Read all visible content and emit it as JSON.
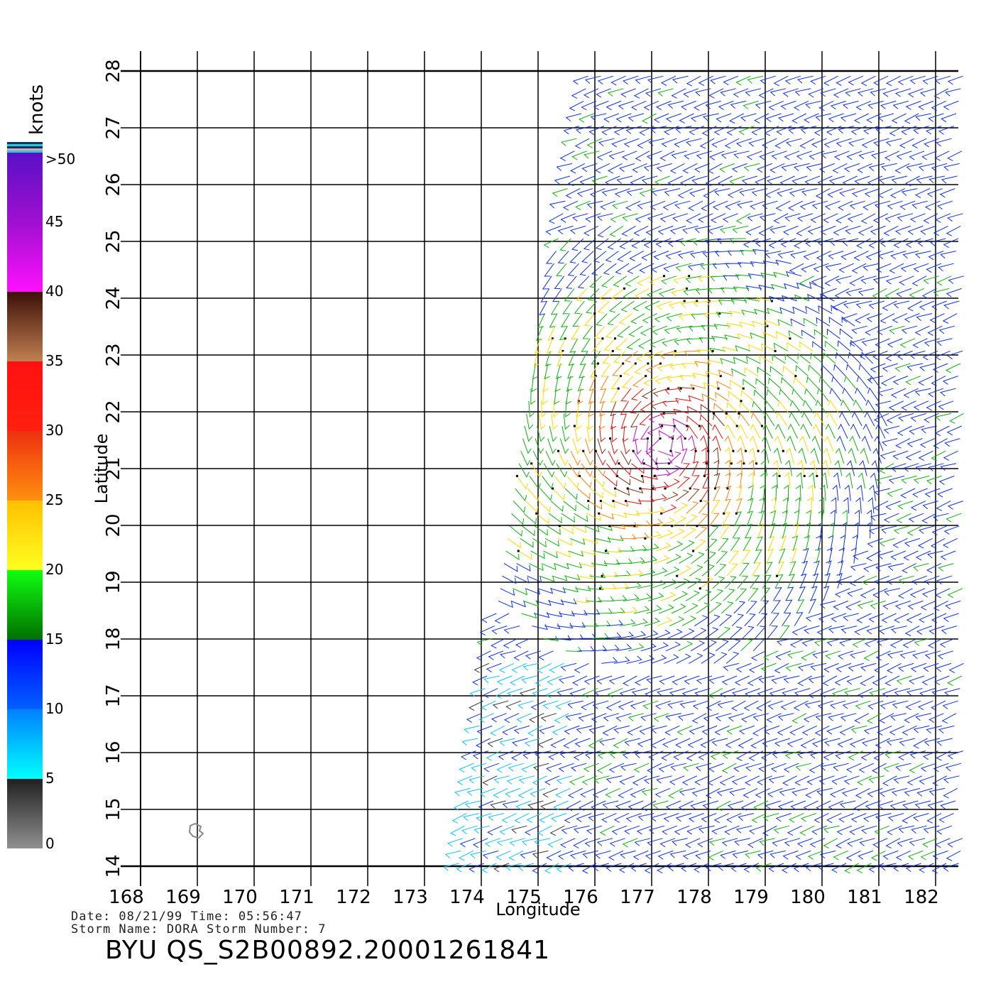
{
  "map": {
    "lon_range": [
      168,
      182
    ],
    "lat_range": [
      14,
      28
    ],
    "lon_ticks": [
      "168",
      "169",
      "170",
      "171",
      "172",
      "173",
      "174",
      "175",
      "176",
      "177",
      "178",
      "179",
      "180",
      "181",
      "182"
    ],
    "lat_ticks": [
      "14",
      "15",
      "16",
      "17",
      "18",
      "19",
      "20",
      "21",
      "22",
      "23",
      "24",
      "25",
      "26",
      "27",
      "28"
    ],
    "xlabel": "Longitude",
    "ylabel": "Latitude",
    "storm_center": {
      "lon": 177.2,
      "lat": 21.4
    },
    "swath_west_edge": [
      [
        175.9,
        28
      ],
      [
        174.8,
        22
      ],
      [
        173.6,
        14
      ]
    ],
    "island": {
      "lon": 169.0,
      "lat": 14.65
    }
  },
  "colorbar": {
    "unit": "knots",
    "labels": [
      ">50",
      "45",
      "40",
      "35",
      "30",
      "25",
      "20",
      "15",
      "10",
      "5",
      "0"
    ],
    "segments": [
      {
        "from": 45,
        "to": 50,
        "top": "#5a10c8",
        "bottom": "#a010d0"
      },
      {
        "from": 40,
        "to": 45,
        "top": "#a010d0",
        "bottom": "#ff10ff"
      },
      {
        "from": 35,
        "to": 40,
        "top": "#3c1008",
        "bottom": "#c08050"
      },
      {
        "from": 30,
        "to": 35,
        "top": "#ff1010",
        "bottom": "#ff2010"
      },
      {
        "from": 25,
        "to": 30,
        "top": "#ee3010",
        "bottom": "#ff9010"
      },
      {
        "from": 20,
        "to": 25,
        "top": "#ffc000",
        "bottom": "#ffff20"
      },
      {
        "from": 15,
        "to": 20,
        "top": "#10ff10",
        "bottom": "#007000"
      },
      {
        "from": 10,
        "to": 15,
        "top": "#0000ff",
        "bottom": "#0060ff"
      },
      {
        "from": 5,
        "to": 10,
        "top": "#0080ff",
        "bottom": "#00ffff"
      },
      {
        "from": 0,
        "to": 5,
        "top": "#202020",
        "bottom": "#909090"
      }
    ]
  },
  "info": {
    "line1": "Date: 08/21/99  Time: 05:56:47",
    "line2": "Storm Name: DORA  Storm Number: 7",
    "title": "BYU QS_S2B00892.20001261841"
  }
}
